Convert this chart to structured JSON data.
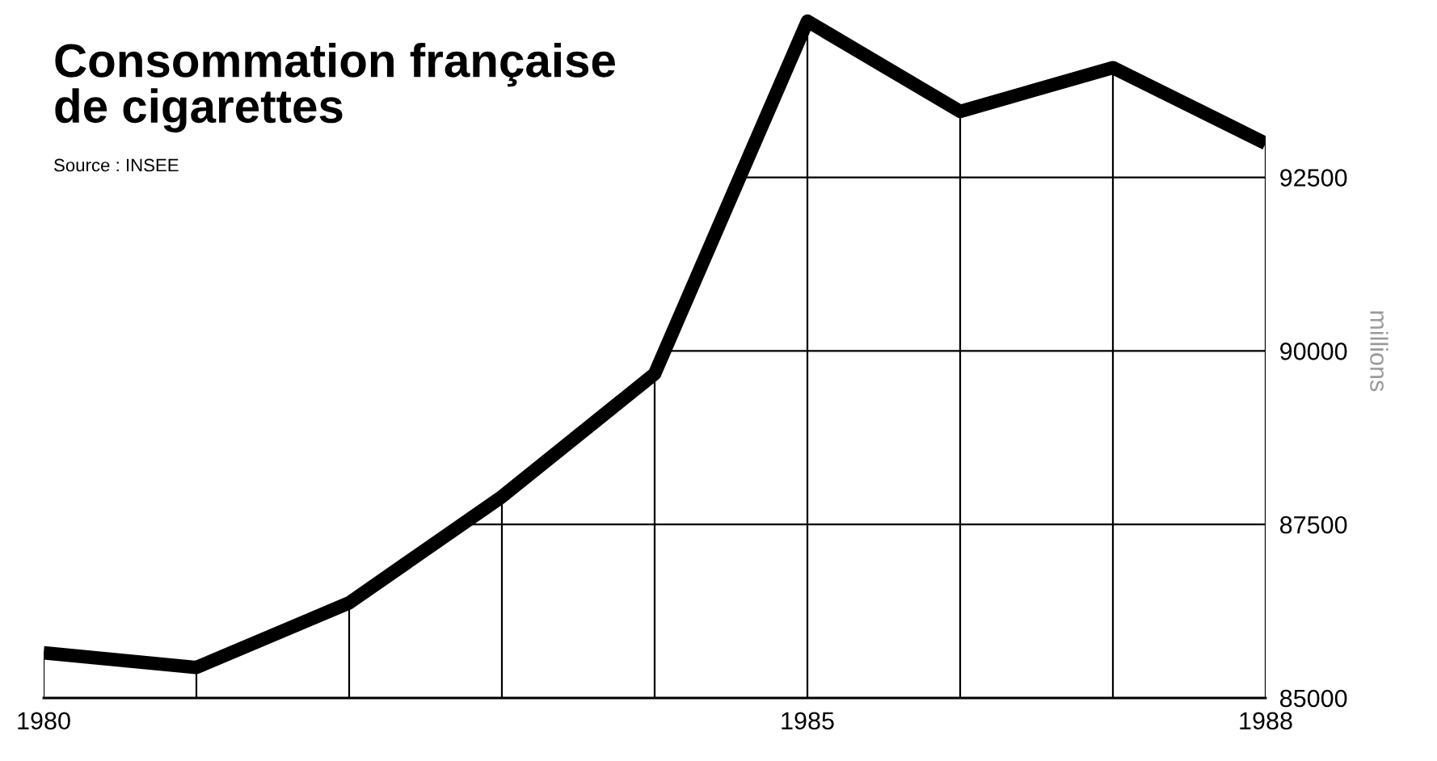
{
  "chart_data": {
    "type": "line",
    "title": "Consommation française\nde cigarettes",
    "annotations": [
      "Source : INSEE"
    ],
    "ylabel": "millions",
    "x": [
      1980,
      1981,
      1982,
      1983,
      1984,
      1985,
      1986,
      1987,
      1988
    ],
    "series": [
      {
        "color": "#000000",
        "values": [
          85650,
          85440,
          86370,
          87900,
          89670,
          94750,
          93450,
          94080,
          92990
        ]
      }
    ],
    "xlim": [
      1980,
      1988
    ],
    "xticks": [
      1980,
      1985,
      1988
    ],
    "ylim": [
      85000,
      95000
    ],
    "yticks": [
      85000,
      87500,
      90000,
      92500
    ],
    "grid": true,
    "marker": "none",
    "line_style": "solid"
  }
}
